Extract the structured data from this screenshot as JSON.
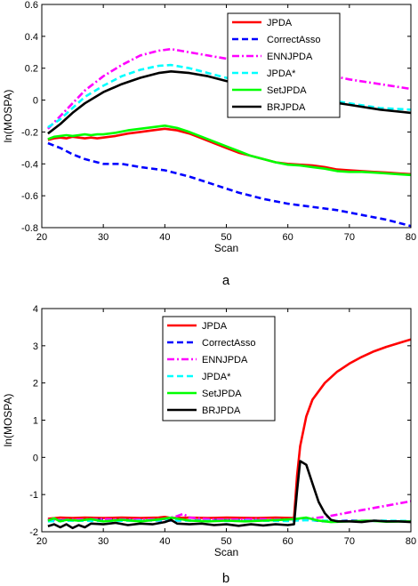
{
  "series_styles": [
    {
      "name": "JPDA",
      "color": "#ff0000",
      "dash": "solid"
    },
    {
      "name": "CorrectAsso",
      "color": "#0000ff",
      "dash": "dashed"
    },
    {
      "name": "ENNJPDA",
      "color": "#ff00ff",
      "dash": "dashdot"
    },
    {
      "name": "JPDA*",
      "color": "#00ffff",
      "dash": "dashed"
    },
    {
      "name": "SetJPDA",
      "color": "#00ff00",
      "dash": "solid"
    },
    {
      "name": "BRJPDA",
      "color": "#000000",
      "dash": "solid"
    }
  ],
  "chart_data": [
    {
      "type": "line",
      "panel_label": "a",
      "xlabel": "Scan",
      "ylabel": "ln(MOSPA)",
      "xlim": [
        20,
        80
      ],
      "ylim": [
        -0.8,
        0.6
      ],
      "xticks": [
        20,
        30,
        40,
        50,
        60,
        70,
        80
      ],
      "yticks": [
        -0.8,
        -0.6,
        -0.4,
        -0.2,
        0,
        0.2,
        0.4,
        0.6
      ],
      "ytick_labels": [
        "-0.8",
        "-0.6",
        "-0.4",
        "-0.2",
        "0",
        "0.2",
        "0.4",
        "0.6"
      ],
      "grid": false,
      "legend": "top-right",
      "series": [
        {
          "name": "JPDA",
          "x": [
            21,
            22,
            23,
            24,
            25,
            26,
            27,
            28,
            29,
            30,
            32,
            34,
            36,
            38,
            40,
            42,
            44,
            46,
            48,
            50,
            52,
            54,
            56,
            58,
            60,
            62,
            64,
            66,
            68,
            70,
            72,
            74,
            76,
            78,
            80
          ],
          "y": [
            -0.25,
            -0.24,
            -0.235,
            -0.24,
            -0.23,
            -0.235,
            -0.24,
            -0.235,
            -0.24,
            -0.235,
            -0.225,
            -0.21,
            -0.2,
            -0.19,
            -0.18,
            -0.19,
            -0.21,
            -0.24,
            -0.27,
            -0.3,
            -0.33,
            -0.35,
            -0.37,
            -0.39,
            -0.4,
            -0.405,
            -0.41,
            -0.42,
            -0.435,
            -0.44,
            -0.445,
            -0.45,
            -0.455,
            -0.46,
            -0.465
          ]
        },
        {
          "name": "CorrectAsso",
          "x": [
            21,
            23,
            25,
            27,
            30,
            33,
            36,
            40,
            44,
            48,
            52,
            56,
            60,
            64,
            68,
            72,
            76,
            80
          ],
          "y": [
            -0.27,
            -0.3,
            -0.34,
            -0.37,
            -0.4,
            -0.4,
            -0.42,
            -0.44,
            -0.48,
            -0.53,
            -0.58,
            -0.62,
            -0.65,
            -0.67,
            -0.69,
            -0.72,
            -0.75,
            -0.79
          ]
        },
        {
          "name": "ENNJPDA",
          "x": [
            21,
            23,
            25,
            27,
            30,
            33,
            36,
            39,
            41,
            44,
            47,
            50,
            55,
            60,
            65,
            70,
            75,
            80
          ],
          "y": [
            -0.18,
            -0.1,
            -0.02,
            0.06,
            0.15,
            0.22,
            0.28,
            0.31,
            0.32,
            0.3,
            0.28,
            0.26,
            0.23,
            0.2,
            0.17,
            0.13,
            0.1,
            0.07
          ]
        },
        {
          "name": "JPDA*",
          "x": [
            21,
            23,
            25,
            27,
            30,
            33,
            36,
            39,
            41,
            44,
            47,
            50,
            55,
            60,
            65,
            70,
            75,
            80
          ],
          "y": [
            -0.17,
            -0.12,
            -0.05,
            0.02,
            0.09,
            0.15,
            0.19,
            0.215,
            0.22,
            0.2,
            0.17,
            0.14,
            0.09,
            0.05,
            0.01,
            -0.02,
            -0.05,
            -0.06
          ]
        },
        {
          "name": "SetJPDA",
          "x": [
            21,
            22,
            23,
            24,
            25,
            26,
            27,
            28,
            29,
            30,
            32,
            34,
            36,
            38,
            40,
            42,
            44,
            46,
            48,
            50,
            52,
            54,
            56,
            58,
            60,
            62,
            64,
            66,
            68,
            70,
            72,
            74,
            76,
            78,
            80
          ],
          "y": [
            -0.245,
            -0.23,
            -0.225,
            -0.22,
            -0.225,
            -0.22,
            -0.215,
            -0.22,
            -0.215,
            -0.215,
            -0.205,
            -0.19,
            -0.18,
            -0.17,
            -0.16,
            -0.175,
            -0.2,
            -0.23,
            -0.26,
            -0.29,
            -0.32,
            -0.35,
            -0.37,
            -0.39,
            -0.405,
            -0.41,
            -0.42,
            -0.43,
            -0.445,
            -0.45,
            -0.45,
            -0.455,
            -0.46,
            -0.465,
            -0.47
          ]
        },
        {
          "name": "BRJPDA",
          "x": [
            21,
            23,
            25,
            27,
            30,
            33,
            36,
            39,
            41,
            44,
            47,
            50,
            55,
            60,
            65,
            70,
            75,
            80
          ],
          "y": [
            -0.21,
            -0.15,
            -0.08,
            -0.02,
            0.05,
            0.1,
            0.14,
            0.17,
            0.18,
            0.17,
            0.15,
            0.12,
            0.08,
            0.04,
            0.0,
            -0.03,
            -0.06,
            -0.08
          ]
        }
      ]
    },
    {
      "type": "line",
      "panel_label": "b",
      "xlabel": "Scan",
      "ylabel": "ln(MOSPA)",
      "xlim": [
        20,
        80
      ],
      "ylim": [
        -2,
        4
      ],
      "xticks": [
        20,
        30,
        40,
        50,
        60,
        70,
        80
      ],
      "yticks": [
        -2,
        -1,
        0,
        1,
        2,
        3,
        4
      ],
      "ytick_labels": [
        "-2",
        "-1",
        "0",
        "1",
        "2",
        "3",
        "4"
      ],
      "grid": false,
      "legend": "top-center",
      "series": [
        {
          "name": "JPDA",
          "x": [
            21,
            23,
            25,
            27,
            30,
            33,
            36,
            39,
            40,
            41,
            44,
            47,
            50,
            55,
            58,
            61,
            61.5,
            62,
            63,
            64,
            66,
            68,
            70,
            72,
            74,
            76,
            78,
            80
          ],
          "y": [
            -1.65,
            -1.62,
            -1.63,
            -1.62,
            -1.63,
            -1.62,
            -1.63,
            -1.62,
            -1.6,
            -1.63,
            -1.62,
            -1.63,
            -1.62,
            -1.63,
            -1.62,
            -1.63,
            -0.5,
            0.3,
            1.1,
            1.55,
            2.0,
            2.3,
            2.52,
            2.7,
            2.85,
            2.97,
            3.07,
            3.17
          ]
        },
        {
          "name": "CorrectAsso",
          "x": [
            21,
            30,
            40,
            50,
            60,
            63,
            66,
            70,
            75,
            80
          ],
          "y": [
            -1.7,
            -1.68,
            -1.7,
            -1.69,
            -1.7,
            -1.68,
            -1.72,
            -1.7,
            -1.71,
            -1.72
          ]
        },
        {
          "name": "ENNJPDA",
          "x": [
            21,
            25,
            30,
            35,
            40,
            42,
            43,
            44,
            47,
            50,
            55,
            60,
            62,
            64,
            66,
            68,
            70,
            72,
            74,
            76,
            78,
            80
          ],
          "y": [
            -1.68,
            -1.67,
            -1.66,
            -1.67,
            -1.66,
            -1.58,
            -1.52,
            -1.62,
            -1.66,
            -1.67,
            -1.66,
            -1.67,
            -1.65,
            -1.64,
            -1.6,
            -1.54,
            -1.48,
            -1.42,
            -1.36,
            -1.3,
            -1.24,
            -1.18
          ]
        },
        {
          "name": "JPDA*",
          "x": [
            21,
            25,
            30,
            35,
            40,
            45,
            50,
            55,
            60,
            63,
            66,
            70,
            75,
            80
          ],
          "y": [
            -1.72,
            -1.7,
            -1.71,
            -1.7,
            -1.69,
            -1.7,
            -1.71,
            -1.7,
            -1.71,
            -1.69,
            -1.7,
            -1.72,
            -1.7,
            -1.71
          ]
        },
        {
          "name": "SetJPDA",
          "x": [
            21,
            22,
            23,
            24,
            26,
            28,
            30,
            33,
            36,
            39,
            41,
            44,
            47,
            50,
            53,
            56,
            59,
            61,
            63,
            65,
            67,
            70,
            73,
            76,
            80
          ],
          "y": [
            -1.7,
            -1.64,
            -1.72,
            -1.68,
            -1.7,
            -1.66,
            -1.72,
            -1.68,
            -1.72,
            -1.67,
            -1.62,
            -1.7,
            -1.72,
            -1.7,
            -1.72,
            -1.7,
            -1.68,
            -1.66,
            -1.62,
            -1.7,
            -1.74,
            -1.72,
            -1.7,
            -1.73,
            -1.72
          ]
        },
        {
          "name": "BRJPDA",
          "x": [
            21,
            22,
            23,
            24,
            25,
            26,
            27,
            28,
            30,
            32,
            34,
            36,
            38,
            40,
            41,
            42,
            44,
            46,
            48,
            50,
            52,
            54,
            56,
            58,
            60,
            61,
            61.5,
            62,
            63,
            64,
            65,
            66,
            67,
            68,
            70,
            72,
            74,
            76,
            78,
            80
          ],
          "y": [
            -1.85,
            -1.8,
            -1.88,
            -1.8,
            -1.9,
            -1.82,
            -1.88,
            -1.78,
            -1.8,
            -1.76,
            -1.82,
            -1.78,
            -1.8,
            -1.74,
            -1.68,
            -1.78,
            -1.8,
            -1.78,
            -1.82,
            -1.8,
            -1.84,
            -1.8,
            -1.83,
            -1.8,
            -1.82,
            -1.8,
            -0.9,
            -0.1,
            -0.2,
            -0.7,
            -1.2,
            -1.5,
            -1.68,
            -1.72,
            -1.72,
            -1.74,
            -1.7,
            -1.72,
            -1.72,
            -1.74
          ]
        }
      ]
    }
  ]
}
